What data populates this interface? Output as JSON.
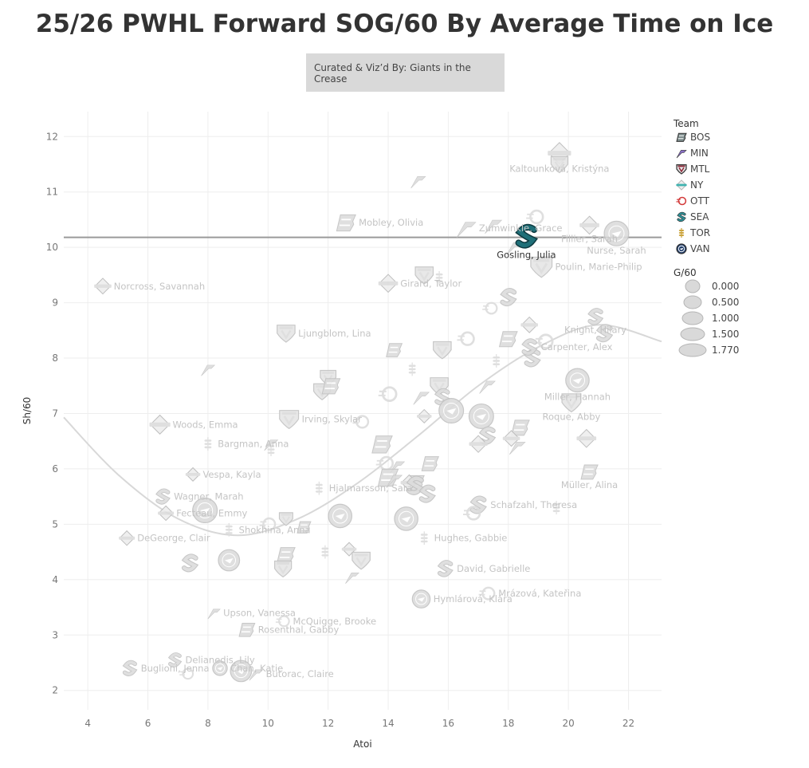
{
  "header": {
    "title": "25/26 PWHL Forward SOG/60 By Average Time on Ice",
    "credit": "Curated & Viz’d By: Giants in the Crease"
  },
  "colors": {
    "BOS": "#7d8c8c",
    "MIN": "#8a70c8",
    "MTL": "#8f2a3a",
    "NY": "#3fb3b0",
    "OTT": "#d33a3a",
    "SEA": "#2f8f96",
    "TOR": "#c9a035",
    "VAN": "#1f3d6b",
    "highlight": "#1f6f78",
    "reference_line": "#9a9a9a",
    "trend": "#d8d8d8"
  },
  "legend": {
    "team_title": "Team",
    "teams": [
      {
        "code": "BOS",
        "icon": "bos-logo-icon"
      },
      {
        "code": "MIN",
        "icon": "min-logo-icon"
      },
      {
        "code": "MTL",
        "icon": "mtl-logo-icon"
      },
      {
        "code": "NY",
        "icon": "ny-logo-icon"
      },
      {
        "code": "OTT",
        "icon": "ott-logo-icon"
      },
      {
        "code": "SEA",
        "icon": "sea-logo-icon"
      },
      {
        "code": "TOR",
        "icon": "tor-logo-icon"
      },
      {
        "code": "VAN",
        "icon": "van-logo-icon"
      }
    ],
    "size_title": "G/60",
    "sizes": [
      "0.000",
      "0.500",
      "1.000",
      "1.500",
      "1.770"
    ]
  },
  "chart_data": {
    "type": "scatter",
    "xlabel": "Atoi",
    "ylabel": "Sh/60",
    "xlim": [
      3.2,
      23.1
    ],
    "ylim": [
      1.65,
      12.45
    ],
    "xticks": [
      4,
      6,
      8,
      10,
      12,
      14,
      16,
      18,
      20,
      22
    ],
    "yticks": [
      2,
      3,
      4,
      5,
      6,
      7,
      8,
      9,
      10,
      11,
      12
    ],
    "reference_line_y": 10.18,
    "grid": true,
    "legend_position": "right",
    "trend_line": [
      [
        3.2,
        6.93
      ],
      [
        5,
        5.9
      ],
      [
        7,
        5.1
      ],
      [
        9,
        4.8
      ],
      [
        11,
        5.1
      ],
      [
        13,
        5.75
      ],
      [
        15,
        6.6
      ],
      [
        17,
        7.5
      ],
      [
        19,
        8.2
      ],
      [
        21,
        8.6
      ],
      [
        23.1,
        8.3
      ]
    ],
    "points": [
      {
        "name": "Kaltounková, Kristýna",
        "team": "NY",
        "x": 19.7,
        "y": 11.7,
        "g60": 0.9
      },
      {
        "name": "",
        "team": "MTL",
        "x": 19.7,
        "y": 11.5,
        "g60": 0.5
      },
      {
        "name": "",
        "team": "MIN",
        "x": 15.0,
        "y": 11.2,
        "g60": 0.3
      },
      {
        "name": "Zumwinkle, Grace",
        "team": "MIN",
        "x": 16.6,
        "y": 10.35,
        "g60": 0.7
      },
      {
        "name": "",
        "team": "MIN",
        "x": 17.5,
        "y": 10.4,
        "g60": 0.5
      },
      {
        "name": "",
        "team": "OTT",
        "x": 18.9,
        "y": 10.55,
        "g60": 0.5
      },
      {
        "name": "Fillier, Sarah",
        "team": "NY",
        "x": 20.7,
        "y": 10.4,
        "g60": 0.6
      },
      {
        "name": "Nurse, Sarah",
        "team": "VAN",
        "x": 21.6,
        "y": 10.25,
        "g60": 1.2
      },
      {
        "name": "Mobley, Olivia",
        "team": "BOS",
        "x": 12.6,
        "y": 10.45,
        "g60": 0.7
      },
      {
        "name": "Gosling, Julia",
        "team": "SEA",
        "x": 18.6,
        "y": 10.2,
        "g60": 0.6,
        "highlight": true
      },
      {
        "name": "",
        "team": "MIN",
        "x": 18.2,
        "y": 10.0,
        "g60": 0.4
      },
      {
        "name": "Poulin, Marie-Philip",
        "team": "MTL",
        "x": 19.1,
        "y": 9.65,
        "g60": 0.9
      },
      {
        "name": "Norcross, Savannah",
        "team": "NY",
        "x": 4.5,
        "y": 9.3,
        "g60": 0.4
      },
      {
        "name": "Girard, Taylor",
        "team": "NY",
        "x": 14.0,
        "y": 9.35,
        "g60": 0.6
      },
      {
        "name": "",
        "team": "MTL",
        "x": 15.2,
        "y": 9.5,
        "g60": 0.6
      },
      {
        "name": "",
        "team": "TOR",
        "x": 15.7,
        "y": 9.45,
        "g60": 0.2
      },
      {
        "name": "Knight, Hilary",
        "team": "SEA",
        "x": 20.9,
        "y": 8.75,
        "g60": 0.5
      },
      {
        "name": "",
        "team": "SEA",
        "x": 18.0,
        "y": 9.1,
        "g60": 0.6
      },
      {
        "name": "",
        "team": "OTT",
        "x": 17.4,
        "y": 8.9,
        "g60": 0.3
      },
      {
        "name": "",
        "team": "NY",
        "x": 18.7,
        "y": 8.6,
        "g60": 0.4
      },
      {
        "name": "",
        "team": "SEA",
        "x": 21.2,
        "y": 8.45,
        "g60": 0.6
      },
      {
        "name": "",
        "team": "BOS",
        "x": 18.0,
        "y": 8.35,
        "g60": 0.6
      },
      {
        "name": "",
        "team": "OTT",
        "x": 16.6,
        "y": 8.35,
        "g60": 0.5
      },
      {
        "name": "Ljungblom, Lina",
        "team": "MTL",
        "x": 10.6,
        "y": 8.45,
        "g60": 0.6
      },
      {
        "name": "",
        "team": "BOS",
        "x": 14.2,
        "y": 8.15,
        "g60": 0.4
      },
      {
        "name": "",
        "team": "MTL",
        "x": 15.8,
        "y": 8.15,
        "g60": 0.6
      },
      {
        "name": "",
        "team": "OTT",
        "x": 19.2,
        "y": 8.3,
        "g60": 0.6
      },
      {
        "name": "",
        "team": "SEA",
        "x": 18.8,
        "y": 8.0,
        "g60": 0.6
      },
      {
        "name": "",
        "team": "TOR",
        "x": 17.6,
        "y": 7.95,
        "g60": 0.2
      },
      {
        "name": "Carpenter, Alex",
        "team": "SEA",
        "x": 18.7,
        "y": 8.2,
        "g60": 0.5
      },
      {
        "name": "",
        "team": "TOR",
        "x": 14.8,
        "y": 7.8,
        "g60": 0.2
      },
      {
        "name": "",
        "team": "MIN",
        "x": 8.0,
        "y": 7.8,
        "g60": 0.2
      },
      {
        "name": "",
        "team": "MTL",
        "x": 12.0,
        "y": 7.65,
        "g60": 0.4
      },
      {
        "name": "Miller, Hannah",
        "team": "VAN",
        "x": 20.3,
        "y": 7.6,
        "g60": 1.1
      },
      {
        "name": "",
        "team": "MTL",
        "x": 11.8,
        "y": 7.4,
        "g60": 0.5
      },
      {
        "name": "",
        "team": "BOS",
        "x": 12.1,
        "y": 7.5,
        "g60": 0.6
      },
      {
        "name": "",
        "team": "OTT",
        "x": 14.0,
        "y": 7.35,
        "g60": 0.6
      },
      {
        "name": "",
        "team": "MTL",
        "x": 15.7,
        "y": 7.5,
        "g60": 0.6
      },
      {
        "name": "",
        "team": "MIN",
        "x": 15.1,
        "y": 7.3,
        "g60": 0.4
      },
      {
        "name": "",
        "team": "MIN",
        "x": 17.3,
        "y": 7.5,
        "g60": 0.4
      },
      {
        "name": "",
        "team": "SEA",
        "x": 15.8,
        "y": 7.3,
        "g60": 0.5
      },
      {
        "name": "Roque, Abby",
        "team": "MTL",
        "x": 20.1,
        "y": 7.2,
        "g60": 0.7
      },
      {
        "name": "Irving, Skylar",
        "team": "MTL",
        "x": 10.7,
        "y": 6.9,
        "g60": 0.7
      },
      {
        "name": "",
        "team": "NY",
        "x": 15.2,
        "y": 6.95,
        "g60": 0.2
      },
      {
        "name": "",
        "team": "VAN",
        "x": 16.1,
        "y": 7.05,
        "g60": 1.2
      },
      {
        "name": "",
        "team": "VAN",
        "x": 17.1,
        "y": 6.95,
        "g60": 1.2
      },
      {
        "name": "Woods, Emma",
        "team": "NY",
        "x": 6.4,
        "y": 6.8,
        "g60": 0.7
      },
      {
        "name": "",
        "team": "OTT",
        "x": 13.1,
        "y": 6.85,
        "g60": 0.4
      },
      {
        "name": "",
        "team": "BOS",
        "x": 18.4,
        "y": 6.75,
        "g60": 0.6
      },
      {
        "name": "",
        "team": "SEA",
        "x": 17.3,
        "y": 6.6,
        "g60": 0.6
      },
      {
        "name": "",
        "team": "NY",
        "x": 20.6,
        "y": 6.55,
        "g60": 0.6
      },
      {
        "name": "",
        "team": "NY",
        "x": 17.0,
        "y": 6.45,
        "g60": 0.5
      },
      {
        "name": "",
        "team": "NY",
        "x": 18.1,
        "y": 6.55,
        "g60": 0.4
      },
      {
        "name": "Bargman, Anna",
        "team": "TOR",
        "x": 8.0,
        "y": 6.45,
        "g60": 0.2
      },
      {
        "name": "",
        "team": "MIN",
        "x": 10.1,
        "y": 6.45,
        "g60": 0.2
      },
      {
        "name": "",
        "team": "TOR",
        "x": 10.1,
        "y": 6.35,
        "g60": 0.2
      },
      {
        "name": "",
        "team": "BOS",
        "x": 13.8,
        "y": 6.45,
        "g60": 0.8
      },
      {
        "name": "",
        "team": "MIN",
        "x": 18.3,
        "y": 6.4,
        "g60": 0.4
      },
      {
        "name": "",
        "team": "BOS",
        "x": 15.4,
        "y": 6.1,
        "g60": 0.5
      },
      {
        "name": "",
        "team": "OTT",
        "x": 13.9,
        "y": 6.1,
        "g60": 0.5
      },
      {
        "name": "",
        "team": "MIN",
        "x": 14.3,
        "y": 6.05,
        "g60": 0.3
      },
      {
        "name": "Vespa, Kayla",
        "team": "NY",
        "x": 7.5,
        "y": 5.9,
        "g60": 0.2
      },
      {
        "name": "Müller, Alina",
        "team": "BOS",
        "x": 20.7,
        "y": 5.95,
        "g60": 0.5
      },
      {
        "name": "",
        "team": "BOS",
        "x": 14.0,
        "y": 5.85,
        "g60": 0.8
      },
      {
        "name": "",
        "team": "MIN",
        "x": 14.2,
        "y": 5.8,
        "g60": 0.4
      },
      {
        "name": "",
        "team": "BOS",
        "x": 14.9,
        "y": 5.75,
        "g60": 0.6
      },
      {
        "name": "",
        "team": "NY",
        "x": 14.7,
        "y": 5.75,
        "g60": 0.4
      },
      {
        "name": "",
        "team": "SEA",
        "x": 14.9,
        "y": 5.7,
        "g60": 0.7
      },
      {
        "name": "Hjalmarsson, Sara",
        "team": "TOR",
        "x": 11.7,
        "y": 5.65,
        "g60": 0.2
      },
      {
        "name": "Wagner, Marah",
        "team": "SEA",
        "x": 6.5,
        "y": 5.5,
        "g60": 0.4
      },
      {
        "name": "",
        "team": "SEA",
        "x": 15.3,
        "y": 5.55,
        "g60": 0.6
      },
      {
        "name": "Schafzahl, Theresa",
        "team": "SEA",
        "x": 17.0,
        "y": 5.35,
        "g60": 0.6
      },
      {
        "name": "",
        "team": "OTT",
        "x": 16.8,
        "y": 5.2,
        "g60": 0.5
      },
      {
        "name": "Fecteau, Emmy",
        "team": "NY",
        "x": 6.6,
        "y": 5.2,
        "g60": 0.3
      },
      {
        "name": "",
        "team": "VAN",
        "x": 7.9,
        "y": 5.25,
        "g60": 1.2
      },
      {
        "name": "",
        "team": "VAN",
        "x": 12.4,
        "y": 5.15,
        "g60": 1.1
      },
      {
        "name": "",
        "team": "VAN",
        "x": 14.6,
        "y": 5.1,
        "g60": 1.1
      },
      {
        "name": "",
        "team": "MTL",
        "x": 10.6,
        "y": 5.1,
        "g60": 0.2
      },
      {
        "name": "",
        "team": "OTT",
        "x": 10.0,
        "y": 5.0,
        "g60": 0.4
      },
      {
        "name": "",
        "team": "BOS",
        "x": 11.2,
        "y": 4.95,
        "g60": 0.2
      },
      {
        "name": "",
        "team": "TOR",
        "x": 19.6,
        "y": 5.3,
        "g60": 0.2
      },
      {
        "name": "Shokhina, Anna",
        "team": "TOR",
        "x": 8.7,
        "y": 4.9,
        "g60": 0.2
      },
      {
        "name": "Hughes, Gabbie",
        "team": "TOR",
        "x": 15.2,
        "y": 4.75,
        "g60": 0.2
      },
      {
        "name": "DeGeorge, Clair",
        "team": "NY",
        "x": 5.3,
        "y": 4.75,
        "g60": 0.3
      },
      {
        "name": "",
        "team": "TOR",
        "x": 11.9,
        "y": 4.5,
        "g60": 0.2
      },
      {
        "name": "",
        "team": "NY",
        "x": 12.7,
        "y": 4.55,
        "g60": 0.2
      },
      {
        "name": "",
        "team": "BOS",
        "x": 10.6,
        "y": 4.45,
        "g60": 0.6
      },
      {
        "name": "",
        "team": "MTL",
        "x": 13.1,
        "y": 4.35,
        "g60": 0.6
      },
      {
        "name": "",
        "team": "SEA",
        "x": 7.4,
        "y": 4.3,
        "g60": 0.6
      },
      {
        "name": "",
        "team": "VAN",
        "x": 8.7,
        "y": 4.35,
        "g60": 0.9
      },
      {
        "name": "",
        "team": "MTL",
        "x": 10.5,
        "y": 4.2,
        "g60": 0.5
      },
      {
        "name": "David, Gabrielle",
        "team": "SEA",
        "x": 15.9,
        "y": 4.2,
        "g60": 0.5
      },
      {
        "name": "",
        "team": "MIN",
        "x": 12.8,
        "y": 4.05,
        "g60": 0.2
      },
      {
        "name": "Mrázová, Kateřina",
        "team": "OTT",
        "x": 17.3,
        "y": 3.75,
        "g60": 0.4
      },
      {
        "name": "Hymlárová, Klára",
        "team": "VAN",
        "x": 15.1,
        "y": 3.65,
        "g60": 0.6
      },
      {
        "name": "Upson, Vanessa",
        "team": "MIN",
        "x": 8.2,
        "y": 3.4,
        "g60": 0.1
      },
      {
        "name": "McQuigge, Brooke",
        "team": "OTT",
        "x": 10.5,
        "y": 3.25,
        "g60": 0.2
      },
      {
        "name": "Rosenthal, Gabby",
        "team": "BOS",
        "x": 9.3,
        "y": 3.1,
        "g60": 0.4
      },
      {
        "name": "Delianedis, Lily",
        "team": "SEA",
        "x": 6.9,
        "y": 2.55,
        "g60": 0.3
      },
      {
        "name": "Chan, Katie",
        "team": "VAN",
        "x": 8.4,
        "y": 2.4,
        "g60": 0.3
      },
      {
        "name": "",
        "team": "VAN",
        "x": 9.1,
        "y": 2.35,
        "g60": 0.9
      },
      {
        "name": "Butorac, Claire",
        "team": "MIN",
        "x": 9.6,
        "y": 2.3,
        "g60": 0.2
      },
      {
        "name": "",
        "team": "OTT",
        "x": 7.3,
        "y": 2.3,
        "g60": 0.2
      },
      {
        "name": "Buglioni, Jenna",
        "team": "SEA",
        "x": 5.4,
        "y": 2.4,
        "g60": 0.4
      }
    ]
  }
}
